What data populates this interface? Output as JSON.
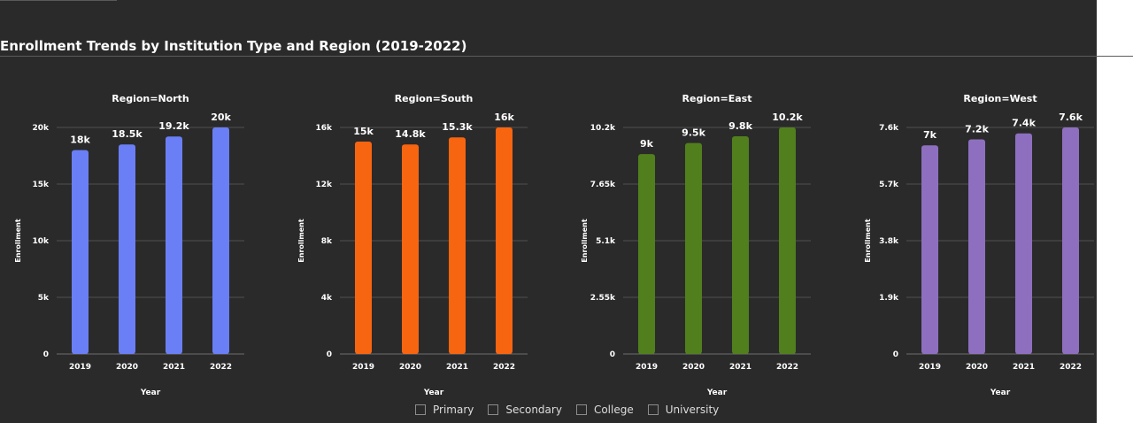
{
  "title": "Enrollment Trends by Institution Type and Region (2019-2022)",
  "legend": {
    "items": [
      {
        "label": "Primary"
      },
      {
        "label": "Secondary"
      },
      {
        "label": "College"
      },
      {
        "label": "University"
      }
    ]
  },
  "chart_data": [
    {
      "type": "bar",
      "title": "Region=North",
      "categories": [
        "2019",
        "2020",
        "2021",
        "2022"
      ],
      "values": [
        18000,
        18500,
        19200,
        20000
      ],
      "value_labels": [
        "18k",
        "18.5k",
        "19.2k",
        "20k"
      ],
      "y_ticks": [
        0,
        5000,
        10000,
        15000,
        20000
      ],
      "y_tick_labels": [
        "0",
        "5k",
        "10k",
        "15k",
        "20k"
      ],
      "ylim": [
        0,
        20000
      ],
      "xlabel": "Year",
      "ylabel": "Enrollment",
      "color": "#6a7ff5",
      "grid": true
    },
    {
      "type": "bar",
      "title": "Region=South",
      "categories": [
        "2019",
        "2020",
        "2021",
        "2022"
      ],
      "values": [
        15000,
        14800,
        15300,
        16000
      ],
      "value_labels": [
        "15k",
        "14.8k",
        "15.3k",
        "16k"
      ],
      "y_ticks": [
        0,
        4000,
        8000,
        12000,
        16000
      ],
      "y_tick_labels": [
        "0",
        "4k",
        "8k",
        "12k",
        "16k"
      ],
      "ylim": [
        0,
        16000
      ],
      "xlabel": "Year",
      "ylabel": "Enrollment",
      "color": "#f86510",
      "grid": true
    },
    {
      "type": "bar",
      "title": "Region=East",
      "categories": [
        "2019",
        "2020",
        "2021",
        "2022"
      ],
      "values": [
        9000,
        9500,
        9800,
        10200
      ],
      "value_labels": [
        "9k",
        "9.5k",
        "9.8k",
        "10.2k"
      ],
      "y_ticks": [
        0,
        2550,
        5100,
        7650,
        10200
      ],
      "y_tick_labels": [
        "0",
        "2.55k",
        "5.1k",
        "7.65k",
        "10.2k"
      ],
      "ylim": [
        0,
        10200
      ],
      "xlabel": "Year",
      "ylabel": "Enrollment",
      "color": "#527f1d",
      "grid": true
    },
    {
      "type": "bar",
      "title": "Region=West",
      "categories": [
        "2019",
        "2020",
        "2021",
        "2022"
      ],
      "values": [
        7000,
        7200,
        7400,
        7600
      ],
      "value_labels": [
        "7k",
        "7.2k",
        "7.4k",
        "7.6k"
      ],
      "y_ticks": [
        0,
        1900,
        3800,
        5700,
        7600
      ],
      "y_tick_labels": [
        "0",
        "1.9k",
        "3.8k",
        "5.7k",
        "7.6k"
      ],
      "ylim": [
        0,
        7600
      ],
      "xlabel": "Year",
      "ylabel": "Enrollment",
      "color": "#8e6fbf",
      "grid": true
    }
  ]
}
